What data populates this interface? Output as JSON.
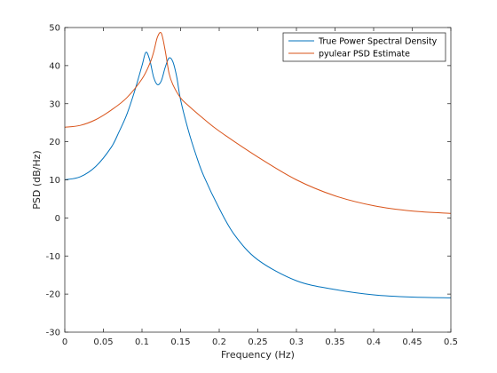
{
  "chart_data": {
    "type": "line",
    "xlabel": "Frequency (Hz)",
    "ylabel": "PSD (dB/Hz)",
    "xlim": [
      0,
      0.5
    ],
    "ylim": [
      -30,
      50
    ],
    "x_ticks": [
      0,
      0.05,
      0.1,
      0.15,
      0.2,
      0.25,
      0.3,
      0.35,
      0.4,
      0.45,
      0.5
    ],
    "x_tick_labels": [
      "0",
      "0.05",
      "0.1",
      "0.15",
      "0.2",
      "0.25",
      "0.3",
      "0.35",
      "0.4",
      "0.45",
      "0.5"
    ],
    "y_ticks": [
      -30,
      -20,
      -10,
      0,
      10,
      20,
      30,
      40,
      50
    ],
    "y_tick_labels": [
      "-30",
      "-20",
      "-10",
      "0",
      "10",
      "20",
      "30",
      "40",
      "50"
    ],
    "grid": false,
    "legend_position": "top-right",
    "series": [
      {
        "name": "True Power Spectral Density",
        "color": "#0072bd",
        "x": [
          0,
          0.02,
          0.04,
          0.06,
          0.07,
          0.08,
          0.09,
          0.1,
          0.105,
          0.11,
          0.115,
          0.12,
          0.125,
          0.13,
          0.135,
          0.14,
          0.145,
          0.15,
          0.16,
          0.17,
          0.18,
          0.2,
          0.22,
          0.25,
          0.3,
          0.35,
          0.4,
          0.45,
          0.5
        ],
        "y": [
          10,
          10.8,
          13.5,
          18.5,
          22.5,
          27,
          33,
          40,
          43.5,
          41.5,
          37,
          35,
          36,
          39.5,
          42,
          41,
          37,
          31,
          23,
          16.5,
          11,
          2.5,
          -4.5,
          -11,
          -16.5,
          -18.8,
          -20.2,
          -20.8,
          -21
        ]
      },
      {
        "name": "pyulear PSD Estimate",
        "color": "#d95319",
        "x": [
          0,
          0.02,
          0.04,
          0.06,
          0.08,
          0.1,
          0.11,
          0.115,
          0.12,
          0.125,
          0.13,
          0.135,
          0.14,
          0.15,
          0.16,
          0.18,
          0.2,
          0.25,
          0.3,
          0.35,
          0.4,
          0.45,
          0.5
        ],
        "y": [
          23.8,
          24.3,
          25.8,
          28.3,
          31.5,
          36.5,
          40.5,
          43.5,
          47.5,
          48.5,
          44,
          38,
          35,
          31.5,
          29.5,
          26,
          22.8,
          16,
          10,
          5.8,
          3.2,
          1.8,
          1.2
        ]
      }
    ]
  }
}
